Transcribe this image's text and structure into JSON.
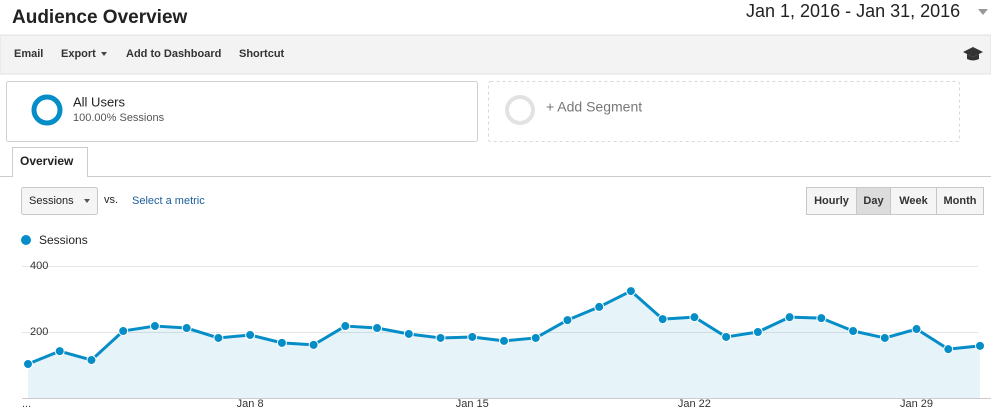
{
  "header": {
    "title": "Audience Overview",
    "date_range": "Jan 1, 2016 - Jan 31, 2016"
  },
  "toolbar": {
    "items": [
      "Email",
      "Export",
      "Add to Dashboard",
      "Shortcut"
    ]
  },
  "segments": [
    {
      "name": "All Users",
      "detail": "100.00% Sessions"
    },
    {
      "name": "+ Add Segment"
    }
  ],
  "tabs": [
    "Overview"
  ],
  "controls": {
    "metric": "Sessions",
    "vs": "vs.",
    "select_metric": "Select a metric",
    "intervals": [
      "Hourly",
      "Day",
      "Week",
      "Month"
    ],
    "active_interval": 1
  },
  "chart_data": {
    "type": "line",
    "categories": [
      "...",
      null,
      null,
      null,
      null,
      null,
      null,
      "Jan 8",
      null,
      null,
      null,
      null,
      null,
      null,
      "Jan 15",
      null,
      null,
      null,
      null,
      null,
      null,
      "Jan 22",
      null,
      null,
      null,
      null,
      null,
      null,
      "Jan 29",
      null,
      null
    ],
    "series": [
      {
        "name": "Sessions",
        "color": "#058dc7",
        "values": [
          103,
          142,
          115,
          203,
          218,
          212,
          182,
          191,
          167,
          161,
          218,
          212,
          194,
          182,
          185,
          173,
          182,
          236,
          276,
          324,
          239,
          245,
          185,
          200,
          245,
          242,
          203,
          182,
          209,
          148,
          158
        ]
      }
    ],
    "ylim": [
      0,
      400
    ],
    "yticks": [
      200,
      400
    ],
    "grid": true,
    "area": true
  }
}
